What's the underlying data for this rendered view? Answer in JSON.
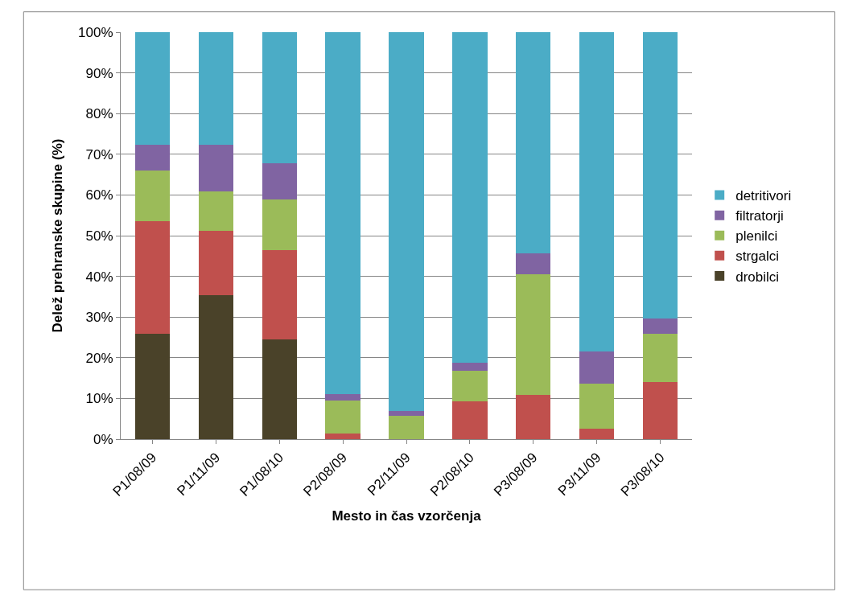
{
  "chart_data": {
    "type": "bar",
    "stacked": true,
    "xlabel": "Mesto in čas vzorčenja",
    "ylabel": "Delež prehranske skupine (%)",
    "categories": [
      "P1/08/09",
      "P1/11/09",
      "P1/08/10",
      "P2/08/09",
      "P2/11/09",
      "P2/08/10",
      "P3/08/09",
      "P3/11/09",
      "P3/08/10"
    ],
    "series": [
      {
        "name": "drobilci",
        "color": "#4a4229",
        "values": [
          25.8,
          35.3,
          24.5,
          0,
          0,
          0,
          0,
          0,
          0
        ]
      },
      {
        "name": "strgalci",
        "color": "#c0504d",
        "values": [
          27.8,
          15.8,
          21.9,
          1.4,
          0,
          9.3,
          10.8,
          2.6,
          14.0
        ]
      },
      {
        "name": "plenilci",
        "color": "#9bbb59",
        "values": [
          12.5,
          9.8,
          12.4,
          8.1,
          5.7,
          7.5,
          29.8,
          11.0,
          11.8
        ]
      },
      {
        "name": "filtratorji",
        "color": "#8064a2",
        "values": [
          6.3,
          11.5,
          8.9,
          1.5,
          1.2,
          1.9,
          5.0,
          7.9,
          3.8
        ]
      },
      {
        "name": "detritivori",
        "color": "#4bacc6",
        "values": [
          27.6,
          27.6,
          32.3,
          89.0,
          93.1,
          81.3,
          54.4,
          78.5,
          70.4
        ]
      }
    ],
    "ylim": [
      0,
      100
    ],
    "yticks": [
      {
        "value": 0,
        "label": "0%"
      },
      {
        "value": 10,
        "label": "10%"
      },
      {
        "value": 20,
        "label": "20%"
      },
      {
        "value": 30,
        "label": "30%"
      },
      {
        "value": 40,
        "label": "40%"
      },
      {
        "value": 50,
        "label": "50%"
      },
      {
        "value": 60,
        "label": "60%"
      },
      {
        "value": 70,
        "label": "70%"
      },
      {
        "value": 80,
        "label": "80%"
      },
      {
        "value": 90,
        "label": "90%"
      },
      {
        "value": 100,
        "label": "100%"
      }
    ],
    "grid": "y",
    "legend": "right"
  }
}
